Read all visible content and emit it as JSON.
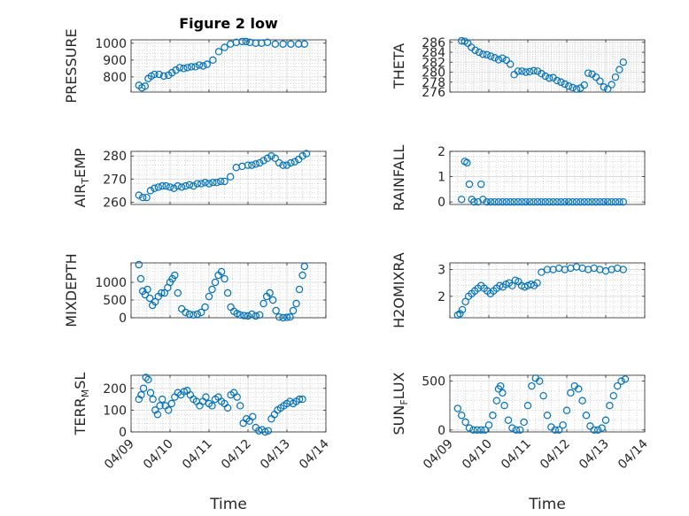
{
  "figure": {
    "title": "Figure 2 low",
    "marker_color": "#0072BD",
    "x_axis_label": "Time"
  },
  "chart_data": [
    {
      "type": "scatter",
      "name": "pressure",
      "title": "Figure 2 low",
      "ylabel_parts": [
        "PRESSURE"
      ],
      "ylim": [
        710,
        1020
      ],
      "yticks": [
        800,
        900,
        1000
      ],
      "xlim": [
        0,
        5
      ],
      "x": [
        0.2,
        0.28,
        0.36,
        0.44,
        0.52,
        0.6,
        0.72,
        0.84,
        0.96,
        1.05,
        1.15,
        1.25,
        1.35,
        1.45,
        1.55,
        1.65,
        1.75,
        1.85,
        1.95,
        2.1,
        2.25,
        2.4,
        2.55,
        2.7,
        2.85,
        2.95,
        3.05,
        3.2,
        3.35,
        3.5,
        3.7,
        3.9,
        4.1,
        4.3,
        4.45
      ],
      "y": [
        750,
        735,
        745,
        790,
        805,
        815,
        815,
        805,
        810,
        825,
        840,
        855,
        850,
        855,
        860,
        860,
        870,
        865,
        875,
        900,
        950,
        975,
        995,
        1005,
        1010,
        1010,
        1005,
        1000,
        1000,
        1005,
        995,
        995,
        995,
        995,
        995
      ]
    },
    {
      "type": "scatter",
      "name": "theta",
      "ylabel_parts": [
        "THETA"
      ],
      "ylim": [
        276,
        286.5
      ],
      "yticks": [
        276,
        278,
        280,
        282,
        284,
        286
      ],
      "xlim": [
        0,
        5
      ],
      "x": [
        0.3,
        0.38,
        0.46,
        0.55,
        0.65,
        0.75,
        0.85,
        0.95,
        1.05,
        1.15,
        1.25,
        1.35,
        1.45,
        1.55,
        1.65,
        1.75,
        1.85,
        1.95,
        2.05,
        2.15,
        2.25,
        2.35,
        2.45,
        2.55,
        2.65,
        2.75,
        2.85,
        2.95,
        3.05,
        3.15,
        3.25,
        3.35,
        3.45,
        3.55,
        3.65,
        3.75,
        3.85,
        3.95,
        4.05,
        4.15,
        4.25,
        4.35,
        4.45
      ],
      "y": [
        286.3,
        286.2,
        285.8,
        285.0,
        284.4,
        284.0,
        283.6,
        283.5,
        283.2,
        282.9,
        282.5,
        282.8,
        282.4,
        281.6,
        279.5,
        280.2,
        280.2,
        280.0,
        280.1,
        280.3,
        280.2,
        279.7,
        279.2,
        278.8,
        278.9,
        278.3,
        278.0,
        277.6,
        277.2,
        276.9,
        276.6,
        276.8,
        277.4,
        279.8,
        279.6,
        279.0,
        278.2,
        277.0,
        276.6,
        277.5,
        279.0,
        280.5,
        282.0
      ]
    },
    {
      "type": "scatter",
      "name": "air-temp",
      "ylabel_parts": [
        "AIR",
        "T",
        "EMP"
      ],
      "ylim": [
        259,
        282
      ],
      "yticks": [
        260,
        270,
        280
      ],
      "xlim": [
        0,
        5
      ],
      "x": [
        0.2,
        0.3,
        0.4,
        0.5,
        0.6,
        0.7,
        0.8,
        0.9,
        1.0,
        1.1,
        1.2,
        1.3,
        1.4,
        1.5,
        1.6,
        1.7,
        1.8,
        1.9,
        2.0,
        2.1,
        2.2,
        2.3,
        2.4,
        2.55,
        2.7,
        2.85,
        3.0,
        3.1,
        3.2,
        3.3,
        3.4,
        3.5,
        3.6,
        3.7,
        3.8,
        3.9,
        4.0,
        4.1,
        4.2,
        4.3,
        4.4,
        4.5
      ],
      "y": [
        263,
        262,
        262,
        265,
        266,
        266.5,
        267,
        267,
        266.5,
        266,
        267,
        266.5,
        267,
        267.5,
        267,
        268,
        268,
        268.5,
        268,
        268.5,
        268.5,
        269,
        269,
        271,
        275,
        275.5,
        276,
        276,
        276.5,
        277,
        278,
        279,
        280,
        279,
        277,
        276,
        276,
        277,
        277.5,
        278.5,
        280,
        281
      ]
    },
    {
      "type": "scatter",
      "name": "rainfall",
      "ylabel_parts": [
        "RAINFALL"
      ],
      "ylim": [
        -0.1,
        2.0
      ],
      "yticks": [
        0,
        1,
        2
      ],
      "xlim": [
        0,
        5
      ],
      "x": [
        0.3,
        0.38,
        0.44,
        0.5,
        0.56,
        0.62,
        0.72,
        0.8,
        0.85,
        0.95,
        1.05,
        1.15,
        1.25,
        1.35,
        1.45,
        1.55,
        1.65,
        1.75,
        1.85,
        1.95,
        2.05,
        2.15,
        2.25,
        2.35,
        2.45,
        2.55,
        2.65,
        2.75,
        2.85,
        2.95,
        3.05,
        3.15,
        3.25,
        3.35,
        3.45,
        3.55,
        3.65,
        3.75,
        3.85,
        3.95,
        4.05,
        4.15,
        4.25,
        4.35,
        4.45
      ],
      "y": [
        0.1,
        1.6,
        1.55,
        0.7,
        0.1,
        0.0,
        0.0,
        0.7,
        0.1,
        0,
        0,
        0,
        0,
        0,
        0,
        0,
        0,
        0,
        0,
        0,
        0,
        0,
        0,
        0,
        0,
        0,
        0,
        0,
        0,
        0,
        0,
        0,
        0,
        0,
        0,
        0,
        0,
        0,
        0,
        0,
        0,
        0,
        0,
        0,
        0
      ]
    },
    {
      "type": "scatter",
      "name": "mixdepth",
      "ylabel_parts": [
        "MIXDEPTH"
      ],
      "ylim": [
        0,
        1550
      ],
      "yticks": [
        0,
        500,
        1000
      ],
      "xlim": [
        0,
        5
      ],
      "x": [
        0.2,
        0.25,
        0.3,
        0.36,
        0.42,
        0.48,
        0.55,
        0.62,
        0.7,
        0.78,
        0.86,
        0.94,
        1.0,
        1.06,
        1.12,
        1.2,
        1.3,
        1.4,
        1.5,
        1.6,
        1.7,
        1.8,
        1.9,
        2.0,
        2.08,
        2.16,
        2.24,
        2.32,
        2.4,
        2.48,
        2.56,
        2.64,
        2.72,
        2.8,
        2.9,
        3.0,
        3.1,
        3.2,
        3.3,
        3.4,
        3.48,
        3.56,
        3.64,
        3.72,
        3.8,
        3.9,
        4.0,
        4.08,
        4.16,
        4.24,
        4.32,
        4.4,
        4.45
      ],
      "y": [
        1500,
        1100,
        750,
        650,
        800,
        550,
        350,
        450,
        600,
        700,
        700,
        850,
        1000,
        1100,
        1200,
        700,
        250,
        150,
        100,
        80,
        100,
        150,
        300,
        600,
        800,
        1000,
        1200,
        1300,
        1100,
        700,
        300,
        180,
        120,
        80,
        60,
        50,
        100,
        50,
        80,
        400,
        600,
        700,
        500,
        200,
        20,
        0,
        10,
        20,
        200,
        400,
        800,
        1200,
        1450
      ]
    },
    {
      "type": "scatter",
      "name": "h2omixra",
      "ylabel_parts": [
        "H2OMIXRA"
      ],
      "ylim": [
        1.2,
        3.25
      ],
      "yticks": [
        2,
        3
      ],
      "xlim": [
        0,
        5
      ],
      "x": [
        0.2,
        0.26,
        0.32,
        0.4,
        0.48,
        0.56,
        0.64,
        0.72,
        0.8,
        0.88,
        0.96,
        1.04,
        1.12,
        1.2,
        1.28,
        1.36,
        1.44,
        1.52,
        1.6,
        1.68,
        1.76,
        1.84,
        1.92,
        2.0,
        2.08,
        2.16,
        2.24,
        2.35,
        2.5,
        2.65,
        2.8,
        2.95,
        3.1,
        3.25,
        3.4,
        3.55,
        3.7,
        3.85,
        4.0,
        4.15,
        4.3,
        4.45
      ],
      "y": [
        1.3,
        1.35,
        1.5,
        1.8,
        2.0,
        2.1,
        2.2,
        2.3,
        2.4,
        2.3,
        2.2,
        2.1,
        2.2,
        2.3,
        2.4,
        2.35,
        2.45,
        2.5,
        2.4,
        2.6,
        2.55,
        2.4,
        2.35,
        2.4,
        2.45,
        2.4,
        2.5,
        2.9,
        3.0,
        3.0,
        3.05,
        3.0,
        3.05,
        3.1,
        3.05,
        3.0,
        3.05,
        3.0,
        2.95,
        3.0,
        3.05,
        3.0
      ]
    },
    {
      "type": "scatter",
      "name": "terr-msl",
      "ylabel_parts": [
        "TERR",
        "M",
        "SL"
      ],
      "ylim": [
        0,
        260
      ],
      "yticks": [
        0,
        100,
        200
      ],
      "xlim": [
        0,
        5
      ],
      "x": [
        0.2,
        0.26,
        0.32,
        0.38,
        0.44,
        0.5,
        0.56,
        0.62,
        0.68,
        0.74,
        0.8,
        0.88,
        0.96,
        1.04,
        1.12,
        1.2,
        1.28,
        1.36,
        1.44,
        1.52,
        1.6,
        1.68,
        1.76,
        1.84,
        1.92,
        2.0,
        2.08,
        2.16,
        2.24,
        2.32,
        2.4,
        2.48,
        2.56,
        2.64,
        2.72,
        2.8,
        2.88,
        2.96,
        3.04,
        3.12,
        3.2,
        3.28,
        3.36,
        3.44,
        3.52,
        3.6,
        3.68,
        3.76,
        3.84,
        3.92,
        4.0,
        4.08,
        4.16,
        4.24,
        4.32,
        4.4
      ],
      "y": [
        150,
        170,
        200,
        250,
        240,
        180,
        150,
        100,
        80,
        120,
        150,
        120,
        100,
        130,
        160,
        180,
        170,
        185,
        190,
        170,
        150,
        140,
        120,
        140,
        160,
        130,
        120,
        150,
        160,
        140,
        130,
        110,
        170,
        180,
        160,
        120,
        40,
        60,
        50,
        70,
        20,
        5,
        10,
        0,
        5,
        60,
        80,
        100,
        110,
        120,
        130,
        140,
        130,
        140,
        150,
        150
      ]
    },
    {
      "type": "scatter",
      "name": "sun-flux",
      "ylabel_parts": [
        "SUN",
        "F",
        "LUX"
      ],
      "ylim": [
        -20,
        560
      ],
      "yticks": [
        0,
        500
      ],
      "xlim": [
        0,
        5
      ],
      "x": [
        0.2,
        0.3,
        0.4,
        0.5,
        0.6,
        0.7,
        0.8,
        0.9,
        1.0,
        1.1,
        1.2,
        1.25,
        1.3,
        1.35,
        1.4,
        1.5,
        1.6,
        1.7,
        1.8,
        1.9,
        2.0,
        2.1,
        2.2,
        2.3,
        2.4,
        2.5,
        2.6,
        2.7,
        2.8,
        2.9,
        3.0,
        3.1,
        3.2,
        3.3,
        3.4,
        3.5,
        3.6,
        3.7,
        3.8,
        3.9,
        4.0,
        4.1,
        4.2,
        4.3,
        4.4,
        4.5
      ],
      "y": [
        220,
        150,
        80,
        20,
        0,
        0,
        0,
        0,
        50,
        150,
        300,
        420,
        450,
        380,
        250,
        100,
        20,
        0,
        0,
        80,
        250,
        450,
        530,
        500,
        350,
        150,
        30,
        0,
        0,
        50,
        200,
        380,
        450,
        420,
        300,
        150,
        40,
        0,
        0,
        20,
        100,
        250,
        350,
        450,
        500,
        520
      ]
    }
  ],
  "x_tick_labels": [
    "04/09",
    "04/10",
    "04/11",
    "04/12",
    "04/13",
    "04/14"
  ]
}
